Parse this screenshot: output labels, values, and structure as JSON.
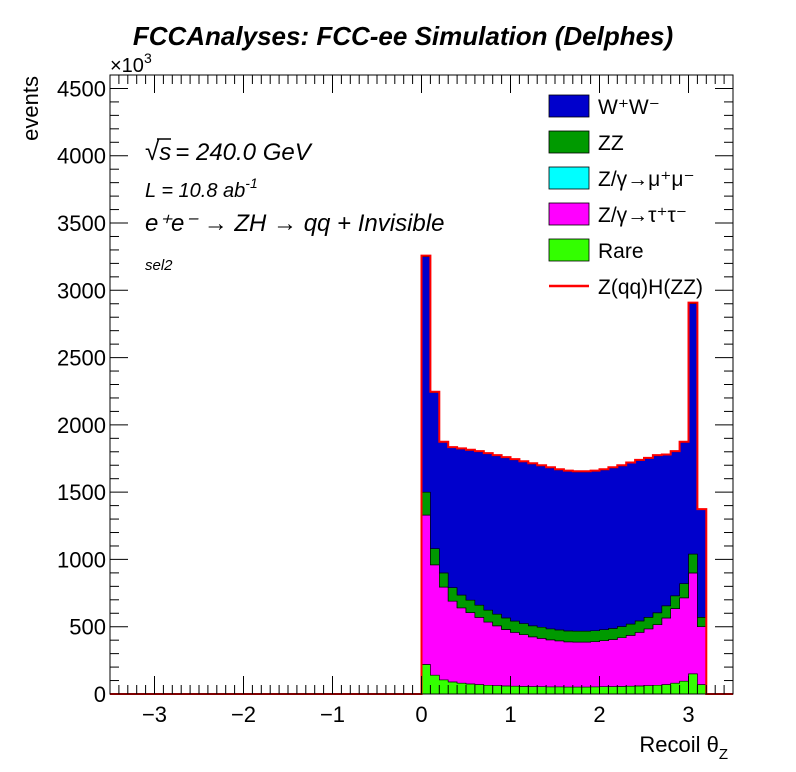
{
  "header": {
    "title": "FCCAnalyses: FCC-ee Simulation (Delphes)"
  },
  "annotations": {
    "energy_symbol": "√",
    "energy_var": "s",
    "energy_value": "= 240.0 GeV",
    "lumi_text": "L = 10.8 ab",
    "lumi_exp": "-1",
    "process_text": "e⁺e⁻ → ZH → qq + Invisible",
    "selection": "sel2"
  },
  "chart_data": {
    "type": "area",
    "title": "FCCAnalyses: FCC-ee Simulation (Delphes)",
    "xlabel": "Recoil θ",
    "xlabel_sub": "Z",
    "ylabel": "events",
    "y_multiplier": "×10",
    "y_multiplier_exp": "3",
    "xlim": [
      -3.5,
      3.5
    ],
    "ylim": [
      0,
      4600
    ],
    "x_ticks": [
      -3,
      -2,
      -1,
      0,
      1,
      2,
      3
    ],
    "x_tick_labels": [
      "−3",
      "−2",
      "−1",
      "0",
      "1",
      "2",
      "3"
    ],
    "y_ticks": [
      0,
      500,
      1000,
      1500,
      2000,
      2500,
      3000,
      3500,
      4000,
      4500
    ],
    "y_tick_labels": [
      "0",
      "500",
      "1000",
      "1500",
      "2000",
      "2500",
      "3000",
      "3500",
      "4000",
      "4500"
    ],
    "stacked": true,
    "bin_edges": [
      0.0,
      0.1,
      0.2,
      0.3,
      0.4,
      0.5,
      0.6,
      0.7,
      0.8,
      0.9,
      1.0,
      1.1,
      1.2,
      1.3,
      1.4,
      1.5,
      1.6,
      1.7,
      1.8,
      1.9,
      2.0,
      2.1,
      2.2,
      2.3,
      2.4,
      2.5,
      2.6,
      2.7,
      2.8,
      2.9,
      3.0,
      3.1,
      3.2
    ],
    "series": [
      {
        "name": "Rare",
        "color": "#33ff00",
        "values": [
          220,
          140,
          105,
          90,
          80,
          75,
          70,
          65,
          62,
          60,
          58,
          56,
          55,
          54,
          53,
          53,
          52,
          52,
          52,
          53,
          54,
          55,
          56,
          58,
          60,
          62,
          65,
          70,
          80,
          95,
          150,
          70
        ]
      },
      {
        "name": "Z/γ→τ⁺τ⁻",
        "color": "#ff00ff",
        "values": [
          1110,
          820,
          690,
          600,
          560,
          530,
          500,
          470,
          445,
          420,
          400,
          385,
          370,
          360,
          350,
          342,
          336,
          334,
          334,
          336,
          342,
          350,
          362,
          378,
          398,
          422,
          450,
          495,
          555,
          620,
          750,
          430
        ]
      },
      {
        "name": "Z/γ→μ⁺μ⁻",
        "color": "#00ffff",
        "values": [
          0,
          0,
          0,
          0,
          0,
          0,
          0,
          0,
          0,
          0,
          0,
          0,
          0,
          0,
          0,
          0,
          0,
          0,
          0,
          0,
          0,
          0,
          0,
          0,
          0,
          0,
          0,
          0,
          0,
          0,
          0,
          0
        ]
      },
      {
        "name": "ZZ",
        "color": "#009a00",
        "values": [
          170,
          120,
          105,
          100,
          95,
          92,
          90,
          88,
          86,
          85,
          84,
          83,
          82,
          82,
          81,
          81,
          81,
          81,
          81,
          81,
          82,
          82,
          83,
          84,
          85,
          86,
          88,
          90,
          95,
          105,
          140,
          70
        ]
      },
      {
        "name": "W⁺W⁻",
        "color": "#0000cc",
        "values": [
          1750,
          1160,
          970,
          1040,
          1085,
          1113,
          1140,
          1162,
          1177,
          1190,
          1198,
          1201,
          1203,
          1199,
          1196,
          1189,
          1186,
          1183,
          1183,
          1185,
          1187,
          1193,
          1194,
          1195,
          1192,
          1180,
          1167,
          1120,
          1070,
          1050,
          1860,
          800
        ]
      }
    ],
    "signal": {
      "name": "Z(qq)H(ZZ)",
      "color": "#ff0000",
      "values": [
        8,
        6,
        5,
        5,
        5,
        5,
        5,
        5,
        5,
        5,
        5,
        5,
        5,
        5,
        5,
        5,
        5,
        5,
        5,
        5,
        5,
        5,
        5,
        5,
        5,
        5,
        5,
        5,
        5,
        5,
        8,
        4
      ]
    },
    "legend_position": "top-right",
    "grid": false
  }
}
